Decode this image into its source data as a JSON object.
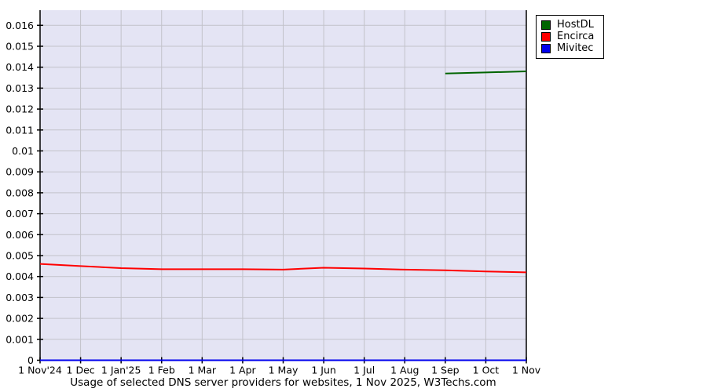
{
  "caption": "Usage of selected DNS server providers for websites, 1 Nov 2025, W3Techs.com",
  "chart_data": {
    "type": "line",
    "title": "Usage of selected DNS server providers for websites, 1 Nov 2025, W3Techs.com",
    "x_tick_labels": [
      "1 Nov'24",
      "1 Dec",
      "1 Jan'25",
      "1 Feb",
      "1 Mar",
      "1 Apr",
      "1 May",
      "1 Jun",
      "1 Jul",
      "1 Aug",
      "1 Sep",
      "1 Oct",
      "1 Nov"
    ],
    "y_tick_labels": [
      "0",
      "0.001",
      "0.002",
      "0.003",
      "0.004",
      "0.005",
      "0.006",
      "0.007",
      "0.008",
      "0.009",
      "0.01",
      "0.011",
      "0.012",
      "0.013",
      "0.014",
      "0.015",
      "0.016"
    ],
    "ylim": [
      0,
      0.016
    ],
    "grid": true,
    "legend_position": "top-right-outside",
    "plot_bg": "#E4E4F4",
    "grid_color": "#C2C2CA",
    "axis_color": "#000000",
    "series": [
      {
        "name": "HostDL",
        "color": "#006400",
        "values": [
          null,
          null,
          null,
          null,
          null,
          null,
          null,
          null,
          null,
          null,
          0.0137,
          0.01375,
          0.0138
        ]
      },
      {
        "name": "Encirca",
        "color": "#FF0000",
        "values": [
          0.0046,
          0.0045,
          0.0044,
          0.00435,
          0.00435,
          0.00435,
          0.00433,
          0.00442,
          0.00438,
          0.00433,
          0.0043,
          0.00424,
          0.0042
        ]
      },
      {
        "name": "Mivitec",
        "color": "#0000EE",
        "values": [
          0,
          0,
          0,
          0,
          0,
          0,
          0,
          0,
          0,
          0,
          0,
          0,
          0
        ]
      }
    ]
  }
}
